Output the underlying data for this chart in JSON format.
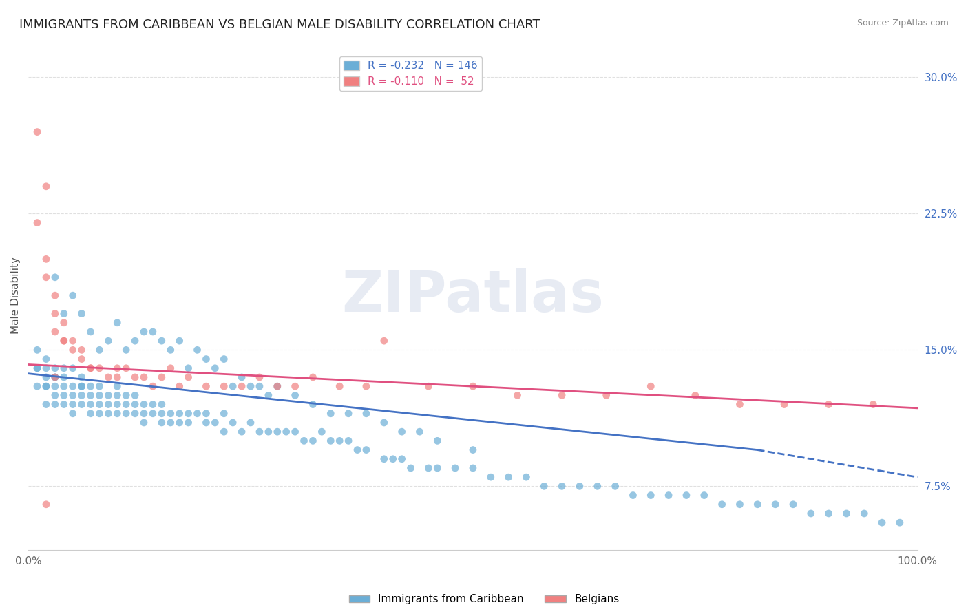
{
  "title": "IMMIGRANTS FROM CARIBBEAN VS BELGIAN MALE DISABILITY CORRELATION CHART",
  "source_text": "Source: ZipAtlas.com",
  "xlabel": "",
  "ylabel": "Male Disability",
  "watermark": "ZIPatlas",
  "xlim": [
    0.0,
    1.0
  ],
  "ylim": [
    0.04,
    0.32
  ],
  "yticks": [
    0.075,
    0.15,
    0.225,
    0.3
  ],
  "ytick_labels": [
    "7.5%",
    "15.0%",
    "22.5%",
    "30.0%"
  ],
  "xticks": [
    0.0,
    1.0
  ],
  "xtick_labels": [
    "0.0%",
    "100.0%"
  ],
  "legend_entries": [
    {
      "label": "R = -0.232   N = 146",
      "color": "#6baed6"
    },
    {
      "label": "R = -0.110   N =  52",
      "color": "#f08080"
    }
  ],
  "series": [
    {
      "name": "Immigrants from Caribbean",
      "color": "#6baed6",
      "R": -0.232,
      "N": 146,
      "x": [
        0.01,
        0.01,
        0.01,
        0.01,
        0.02,
        0.02,
        0.02,
        0.02,
        0.02,
        0.02,
        0.03,
        0.03,
        0.03,
        0.03,
        0.03,
        0.03,
        0.04,
        0.04,
        0.04,
        0.04,
        0.04,
        0.05,
        0.05,
        0.05,
        0.05,
        0.05,
        0.06,
        0.06,
        0.06,
        0.06,
        0.06,
        0.07,
        0.07,
        0.07,
        0.07,
        0.08,
        0.08,
        0.08,
        0.08,
        0.09,
        0.09,
        0.09,
        0.1,
        0.1,
        0.1,
        0.1,
        0.11,
        0.11,
        0.11,
        0.12,
        0.12,
        0.12,
        0.13,
        0.13,
        0.13,
        0.14,
        0.14,
        0.15,
        0.15,
        0.15,
        0.16,
        0.16,
        0.17,
        0.17,
        0.18,
        0.18,
        0.19,
        0.2,
        0.2,
        0.21,
        0.22,
        0.22,
        0.23,
        0.24,
        0.25,
        0.26,
        0.27,
        0.28,
        0.29,
        0.3,
        0.31,
        0.32,
        0.33,
        0.34,
        0.35,
        0.36,
        0.37,
        0.38,
        0.4,
        0.41,
        0.42,
        0.43,
        0.45,
        0.46,
        0.48,
        0.5,
        0.52,
        0.54,
        0.56,
        0.58,
        0.6,
        0.62,
        0.64,
        0.66,
        0.68,
        0.7,
        0.72,
        0.74,
        0.76,
        0.78,
        0.8,
        0.82,
        0.84,
        0.86,
        0.88,
        0.9,
        0.92,
        0.94,
        0.96,
        0.98,
        0.03,
        0.04,
        0.05,
        0.06,
        0.07,
        0.08,
        0.09,
        0.1,
        0.11,
        0.12,
        0.13,
        0.14,
        0.15,
        0.16,
        0.17,
        0.18,
        0.19,
        0.2,
        0.21,
        0.22,
        0.23,
        0.24,
        0.25,
        0.26,
        0.27,
        0.28,
        0.3,
        0.32,
        0.34,
        0.36,
        0.38,
        0.4,
        0.42,
        0.44,
        0.46,
        0.5
      ],
      "y": [
        0.13,
        0.14,
        0.14,
        0.15,
        0.13,
        0.14,
        0.135,
        0.13,
        0.145,
        0.12,
        0.13,
        0.135,
        0.12,
        0.125,
        0.14,
        0.135,
        0.125,
        0.13,
        0.12,
        0.135,
        0.14,
        0.13,
        0.12,
        0.125,
        0.115,
        0.14,
        0.13,
        0.12,
        0.125,
        0.13,
        0.135,
        0.125,
        0.12,
        0.115,
        0.13,
        0.12,
        0.125,
        0.115,
        0.13,
        0.12,
        0.115,
        0.125,
        0.13,
        0.12,
        0.115,
        0.125,
        0.115,
        0.12,
        0.125,
        0.115,
        0.12,
        0.125,
        0.115,
        0.12,
        0.11,
        0.12,
        0.115,
        0.11,
        0.115,
        0.12,
        0.115,
        0.11,
        0.115,
        0.11,
        0.115,
        0.11,
        0.115,
        0.115,
        0.11,
        0.11,
        0.115,
        0.105,
        0.11,
        0.105,
        0.11,
        0.105,
        0.105,
        0.105,
        0.105,
        0.105,
        0.1,
        0.1,
        0.105,
        0.1,
        0.1,
        0.1,
        0.095,
        0.095,
        0.09,
        0.09,
        0.09,
        0.085,
        0.085,
        0.085,
        0.085,
        0.085,
        0.08,
        0.08,
        0.08,
        0.075,
        0.075,
        0.075,
        0.075,
        0.075,
        0.07,
        0.07,
        0.07,
        0.07,
        0.07,
        0.065,
        0.065,
        0.065,
        0.065,
        0.065,
        0.06,
        0.06,
        0.06,
        0.06,
        0.055,
        0.055,
        0.19,
        0.17,
        0.18,
        0.17,
        0.16,
        0.15,
        0.155,
        0.165,
        0.15,
        0.155,
        0.16,
        0.16,
        0.155,
        0.15,
        0.155,
        0.14,
        0.15,
        0.145,
        0.14,
        0.145,
        0.13,
        0.135,
        0.13,
        0.13,
        0.125,
        0.13,
        0.125,
        0.12,
        0.115,
        0.115,
        0.115,
        0.11,
        0.105,
        0.105,
        0.1,
        0.095
      ]
    },
    {
      "name": "Belgians",
      "color": "#f08080",
      "R": -0.11,
      "N": 52,
      "x": [
        0.01,
        0.01,
        0.02,
        0.02,
        0.02,
        0.03,
        0.03,
        0.03,
        0.04,
        0.04,
        0.04,
        0.05,
        0.05,
        0.06,
        0.06,
        0.07,
        0.07,
        0.08,
        0.09,
        0.1,
        0.1,
        0.11,
        0.12,
        0.13,
        0.14,
        0.15,
        0.16,
        0.17,
        0.18,
        0.2,
        0.22,
        0.24,
        0.26,
        0.28,
        0.3,
        0.32,
        0.35,
        0.38,
        0.4,
        0.45,
        0.5,
        0.55,
        0.6,
        0.65,
        0.7,
        0.75,
        0.8,
        0.85,
        0.9,
        0.95,
        0.02,
        0.03
      ],
      "y": [
        0.27,
        0.22,
        0.24,
        0.2,
        0.19,
        0.18,
        0.17,
        0.16,
        0.155,
        0.155,
        0.165,
        0.15,
        0.155,
        0.15,
        0.145,
        0.14,
        0.14,
        0.14,
        0.135,
        0.14,
        0.135,
        0.14,
        0.135,
        0.135,
        0.13,
        0.135,
        0.14,
        0.13,
        0.135,
        0.13,
        0.13,
        0.13,
        0.135,
        0.13,
        0.13,
        0.135,
        0.13,
        0.13,
        0.155,
        0.13,
        0.13,
        0.125,
        0.125,
        0.125,
        0.13,
        0.125,
        0.12,
        0.12,
        0.12,
        0.12,
        0.065,
        0.135
      ]
    }
  ],
  "trendlines": [
    {
      "name": "Immigrants from Caribbean",
      "color": "#4472c4",
      "x_start": 0.0,
      "x_end": 0.82,
      "x_dash_start": 0.82,
      "x_dash_end": 1.0,
      "y_start": 0.137,
      "y_end": 0.095,
      "y_dash_end": 0.08
    },
    {
      "name": "Belgians",
      "color": "#e05080",
      "x_start": 0.0,
      "x_end": 1.0,
      "y_start": 0.142,
      "y_end": 0.118
    }
  ],
  "background_color": "#ffffff",
  "grid_color": "#e0e0e0",
  "title_fontsize": 13,
  "axis_label_fontsize": 11,
  "tick_fontsize": 11,
  "watermark_fontsize": 60,
  "watermark_color": "#d0d8e8",
  "watermark_alpha": 0.5
}
